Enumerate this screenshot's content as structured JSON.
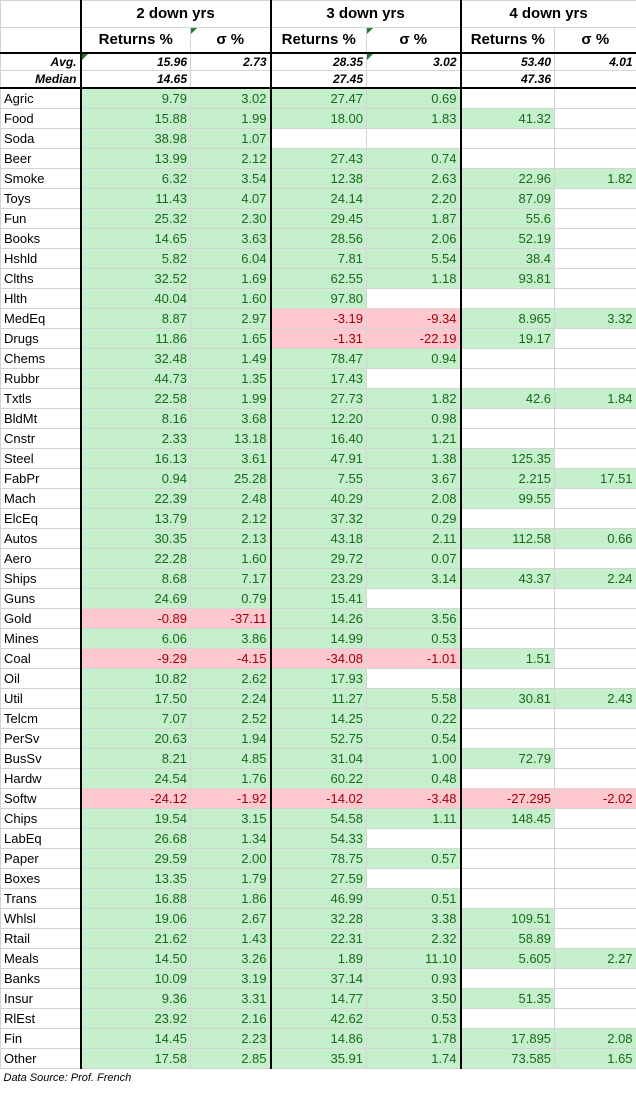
{
  "groups": [
    "2 down yrs",
    "3 down yrs",
    "4 down yrs"
  ],
  "subheaders": [
    "Returns %",
    "σ %"
  ],
  "avg": {
    "label": "Avg.",
    "values": [
      "15.96",
      "2.73",
      "28.35",
      "3.02",
      "53.40",
      "4.01"
    ]
  },
  "median": {
    "label": "Median",
    "values": [
      "14.65",
      "",
      "27.45",
      "",
      "47.36",
      ""
    ]
  },
  "rows": [
    {
      "industry": "Agric",
      "v": [
        "9.79",
        "3.02",
        "27.47",
        "0.69",
        "",
        ""
      ]
    },
    {
      "industry": "Food",
      "v": [
        "15.88",
        "1.99",
        "18.00",
        "1.83",
        "41.32",
        ""
      ]
    },
    {
      "industry": "Soda",
      "v": [
        "38.98",
        "1.07",
        "",
        "",
        "",
        ""
      ]
    },
    {
      "industry": "Beer",
      "v": [
        "13.99",
        "2.12",
        "27.43",
        "0.74",
        "",
        ""
      ]
    },
    {
      "industry": "Smoke",
      "v": [
        "6.32",
        "3.54",
        "12.38",
        "2.63",
        "22.96",
        "1.82"
      ]
    },
    {
      "industry": "Toys",
      "v": [
        "11.43",
        "4.07",
        "24.14",
        "2.20",
        "87.09",
        ""
      ]
    },
    {
      "industry": "Fun",
      "v": [
        "25.32",
        "2.30",
        "29.45",
        "1.87",
        "55.6",
        ""
      ]
    },
    {
      "industry": "Books",
      "v": [
        "14.65",
        "3.63",
        "28.56",
        "2.06",
        "52.19",
        ""
      ]
    },
    {
      "industry": "Hshld",
      "v": [
        "5.82",
        "6.04",
        "7.81",
        "5.54",
        "38.4",
        ""
      ]
    },
    {
      "industry": "Clths",
      "v": [
        "32.52",
        "1.69",
        "62.55",
        "1.18",
        "93.81",
        ""
      ]
    },
    {
      "industry": "Hlth",
      "v": [
        "40.04",
        "1.60",
        "97.80",
        "",
        "",
        ""
      ]
    },
    {
      "industry": "MedEq",
      "v": [
        "8.87",
        "2.97",
        "-3.19",
        "-9.34",
        "8.965",
        "3.32"
      ]
    },
    {
      "industry": "Drugs",
      "v": [
        "11.86",
        "1.65",
        "-1.31",
        "-22.19",
        "19.17",
        ""
      ]
    },
    {
      "industry": "Chems",
      "v": [
        "32.48",
        "1.49",
        "78.47",
        "0.94",
        "",
        ""
      ]
    },
    {
      "industry": "Rubbr",
      "v": [
        "44.73",
        "1.35",
        "17.43",
        "",
        "",
        ""
      ]
    },
    {
      "industry": "Txtls",
      "v": [
        "22.58",
        "1.99",
        "27.73",
        "1.82",
        "42.6",
        "1.84"
      ]
    },
    {
      "industry": "BldMt",
      "v": [
        "8.16",
        "3.68",
        "12.20",
        "0.98",
        "",
        ""
      ]
    },
    {
      "industry": "Cnstr",
      "v": [
        "2.33",
        "13.18",
        "16.40",
        "1.21",
        "",
        ""
      ]
    },
    {
      "industry": "Steel",
      "v": [
        "16.13",
        "3.61",
        "47.91",
        "1.38",
        "125.35",
        ""
      ]
    },
    {
      "industry": "FabPr",
      "v": [
        "0.94",
        "25.28",
        "7.55",
        "3.67",
        "2.215",
        "17.51"
      ]
    },
    {
      "industry": "Mach",
      "v": [
        "22.39",
        "2.48",
        "40.29",
        "2.08",
        "99.55",
        ""
      ]
    },
    {
      "industry": "ElcEq",
      "v": [
        "13.79",
        "2.12",
        "37.32",
        "0.29",
        "",
        ""
      ]
    },
    {
      "industry": "Autos",
      "v": [
        "30.35",
        "2.13",
        "43.18",
        "2.11",
        "112.58",
        "0.66"
      ]
    },
    {
      "industry": "Aero",
      "v": [
        "22.28",
        "1.60",
        "29.72",
        "0.07",
        "",
        ""
      ]
    },
    {
      "industry": "Ships",
      "v": [
        "8.68",
        "7.17",
        "23.29",
        "3.14",
        "43.37",
        "2.24"
      ]
    },
    {
      "industry": "Guns",
      "v": [
        "24.69",
        "0.79",
        "15.41",
        "",
        "",
        ""
      ]
    },
    {
      "industry": "Gold",
      "v": [
        "-0.89",
        "-37.11",
        "14.26",
        "3.56",
        "",
        ""
      ]
    },
    {
      "industry": "Mines",
      "v": [
        "6.06",
        "3.86",
        "14.99",
        "0.53",
        "",
        ""
      ]
    },
    {
      "industry": "Coal",
      "v": [
        "-9.29",
        "-4.15",
        "-34.08",
        "-1.01",
        "1.51",
        ""
      ]
    },
    {
      "industry": "Oil",
      "v": [
        "10.82",
        "2.62",
        "17.93",
        "",
        "",
        ""
      ]
    },
    {
      "industry": "Util",
      "v": [
        "17.50",
        "2.24",
        "11.27",
        "5.58",
        "30.81",
        "2.43"
      ]
    },
    {
      "industry": "Telcm",
      "v": [
        "7.07",
        "2.52",
        "14.25",
        "0.22",
        "",
        ""
      ]
    },
    {
      "industry": "PerSv",
      "v": [
        "20.63",
        "1.94",
        "52.75",
        "0.54",
        "",
        ""
      ]
    },
    {
      "industry": "BusSv",
      "v": [
        "8.21",
        "4.85",
        "31.04",
        "1.00",
        "72.79",
        ""
      ]
    },
    {
      "industry": "Hardw",
      "v": [
        "24.54",
        "1.76",
        "60.22",
        "0.48",
        "",
        ""
      ]
    },
    {
      "industry": "Softw",
      "v": [
        "-24.12",
        "-1.92",
        "-14.02",
        "-3.48",
        "-27.295",
        "-2.02"
      ]
    },
    {
      "industry": "Chips",
      "v": [
        "19.54",
        "3.15",
        "54.58",
        "1.11",
        "148.45",
        ""
      ]
    },
    {
      "industry": "LabEq",
      "v": [
        "26.68",
        "1.34",
        "54.33",
        "",
        "",
        ""
      ]
    },
    {
      "industry": "Paper",
      "v": [
        "29.59",
        "2.00",
        "78.75",
        "0.57",
        "",
        ""
      ]
    },
    {
      "industry": "Boxes",
      "v": [
        "13.35",
        "1.79",
        "27.59",
        "",
        "",
        ""
      ]
    },
    {
      "industry": "Trans",
      "v": [
        "16.88",
        "1.86",
        "46.99",
        "0.51",
        "",
        ""
      ]
    },
    {
      "industry": "Whlsl",
      "v": [
        "19.06",
        "2.67",
        "32.28",
        "3.38",
        "109.51",
        ""
      ]
    },
    {
      "industry": "Rtail",
      "v": [
        "21.62",
        "1.43",
        "22.31",
        "2.32",
        "58.89",
        ""
      ]
    },
    {
      "industry": "Meals",
      "v": [
        "14.50",
        "3.26",
        "1.89",
        "11.10",
        "5.605",
        "2.27"
      ]
    },
    {
      "industry": "Banks",
      "v": [
        "10.09",
        "3.19",
        "37.14",
        "0.93",
        "",
        ""
      ]
    },
    {
      "industry": "Insur",
      "v": [
        "9.36",
        "3.31",
        "14.77",
        "3.50",
        "51.35",
        ""
      ]
    },
    {
      "industry": "RlEst",
      "v": [
        "23.92",
        "2.16",
        "42.62",
        "0.53",
        "",
        ""
      ]
    },
    {
      "industry": "Fin",
      "v": [
        "14.45",
        "2.23",
        "14.86",
        "1.78",
        "17.895",
        "2.08"
      ]
    },
    {
      "industry": "Other",
      "v": [
        "17.58",
        "2.85",
        "35.91",
        "1.74",
        "73.585",
        "1.65"
      ]
    }
  ],
  "source": "Data Source: Prof. French",
  "colors": {
    "positive_fill": "#c6efce",
    "positive_text": "#146b14",
    "negative_fill": "#ffc7ce",
    "negative_text": "#9c0006"
  }
}
